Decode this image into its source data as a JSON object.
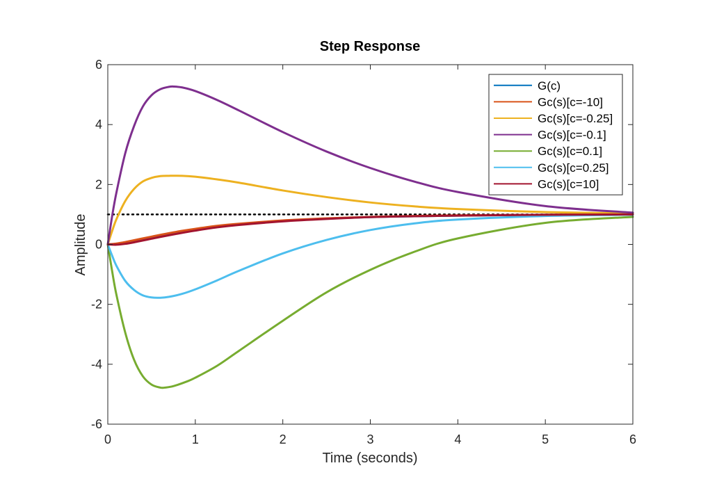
{
  "chart_data": {
    "type": "line",
    "title": "Step Response",
    "xlabel": "Time (seconds)",
    "ylabel": "Amplitude",
    "xlim": [
      0,
      6
    ],
    "ylim": [
      -6,
      6
    ],
    "xticks": [
      0,
      1,
      2,
      3,
      4,
      5,
      6
    ],
    "yticks": [
      -6,
      -4,
      -2,
      0,
      2,
      4,
      6
    ],
    "legend_position": "top-right",
    "reference_line": {
      "y": 1,
      "style": "dotted",
      "color": "#000000"
    },
    "series": [
      {
        "name": "G(c)",
        "color": "#0072BD",
        "x": [
          0,
          0.1,
          0.2,
          0.3,
          0.4,
          0.5,
          0.6,
          0.8,
          1.0,
          1.25,
          1.5,
          2.0,
          2.5,
          3.0,
          3.5,
          4.0,
          5.0,
          6.0
        ],
        "y": [
          0,
          0.02,
          0.06,
          0.11,
          0.17,
          0.23,
          0.29,
          0.4,
          0.49,
          0.59,
          0.66,
          0.78,
          0.86,
          0.91,
          0.94,
          0.96,
          0.99,
          1.0
        ]
      },
      {
        "name": "Gc(s)[c=-10]",
        "color": "#D95319",
        "x": [
          0,
          0.1,
          0.2,
          0.3,
          0.4,
          0.5,
          0.6,
          0.8,
          1.0,
          1.25,
          1.5,
          2.0,
          2.5,
          3.0,
          3.5,
          4.0,
          5.0,
          6.0
        ],
        "y": [
          0,
          0.03,
          0.08,
          0.14,
          0.2,
          0.26,
          0.32,
          0.43,
          0.52,
          0.62,
          0.69,
          0.8,
          0.87,
          0.92,
          0.95,
          0.97,
          0.99,
          1.0
        ]
      },
      {
        "name": "Gc(s)[c=-0.25]",
        "color": "#EDB120",
        "x": [
          0,
          0.05,
          0.1,
          0.2,
          0.3,
          0.4,
          0.5,
          0.6,
          0.7,
          0.85,
          1.0,
          1.25,
          1.5,
          2.0,
          2.5,
          3.0,
          3.5,
          4.0,
          5.0,
          6.0
        ],
        "y": [
          0,
          0.45,
          0.85,
          1.45,
          1.85,
          2.1,
          2.22,
          2.28,
          2.29,
          2.29,
          2.26,
          2.17,
          2.06,
          1.8,
          1.58,
          1.4,
          1.27,
          1.18,
          1.08,
          1.04
        ]
      },
      {
        "name": "Gc(s)[c=-0.1]",
        "color": "#7E2F8E",
        "x": [
          0,
          0.05,
          0.1,
          0.2,
          0.3,
          0.4,
          0.5,
          0.6,
          0.7,
          0.75,
          0.85,
          1.0,
          1.25,
          1.5,
          2.0,
          2.5,
          3.0,
          3.5,
          4.0,
          5.0,
          6.0
        ],
        "y": [
          0,
          0.95,
          1.75,
          3.05,
          3.95,
          4.6,
          4.98,
          5.18,
          5.26,
          5.27,
          5.24,
          5.12,
          4.82,
          4.47,
          3.75,
          3.1,
          2.55,
          2.1,
          1.75,
          1.28,
          1.06
        ]
      },
      {
        "name": "Gc(s)[c=0.1]",
        "color": "#77AC30",
        "x": [
          0,
          0.05,
          0.1,
          0.2,
          0.3,
          0.4,
          0.5,
          0.6,
          0.65,
          0.75,
          0.9,
          1.0,
          1.25,
          1.5,
          2.0,
          2.5,
          3.0,
          3.5,
          4.0,
          5.0,
          6.0
        ],
        "y": [
          0,
          -0.9,
          -1.7,
          -2.95,
          -3.85,
          -4.4,
          -4.68,
          -4.78,
          -4.78,
          -4.73,
          -4.58,
          -4.45,
          -4.05,
          -3.55,
          -2.55,
          -1.6,
          -0.85,
          -0.25,
          0.2,
          0.72,
          0.92
        ]
      },
      {
        "name": "Gc(s)[c=0.25]",
        "color": "#4DBEEE",
        "x": [
          0,
          0.05,
          0.1,
          0.2,
          0.3,
          0.4,
          0.5,
          0.6,
          0.7,
          0.85,
          1.0,
          1.25,
          1.5,
          2.0,
          2.5,
          3.0,
          3.5,
          4.0,
          5.0,
          6.0
        ],
        "y": [
          0,
          -0.38,
          -0.72,
          -1.22,
          -1.52,
          -1.7,
          -1.77,
          -1.78,
          -1.75,
          -1.65,
          -1.5,
          -1.2,
          -0.88,
          -0.3,
          0.15,
          0.48,
          0.7,
          0.83,
          0.95,
          0.99
        ]
      },
      {
        "name": "Gc(s)[c=10]",
        "color": "#A2142F",
        "x": [
          0,
          0.1,
          0.2,
          0.3,
          0.4,
          0.5,
          0.6,
          0.8,
          1.0,
          1.25,
          1.5,
          2.0,
          2.5,
          3.0,
          3.5,
          4.0,
          5.0,
          6.0
        ],
        "y": [
          0,
          -0.01,
          0.02,
          0.07,
          0.13,
          0.19,
          0.25,
          0.36,
          0.46,
          0.57,
          0.65,
          0.77,
          0.85,
          0.91,
          0.94,
          0.96,
          0.99,
          1.0
        ]
      }
    ]
  }
}
